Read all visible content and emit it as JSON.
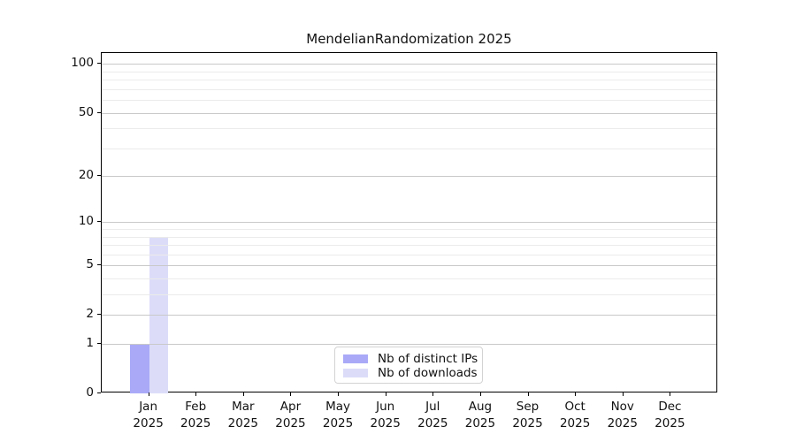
{
  "chart_data": {
    "type": "bar",
    "title": "MendelianRandomization 2025",
    "categories": [
      "Jan",
      "Feb",
      "Mar",
      "Apr",
      "May",
      "Jun",
      "Jul",
      "Aug",
      "Sep",
      "Oct",
      "Nov",
      "Dec"
    ],
    "year_label": "2025",
    "series": [
      {
        "name": "Nb of distinct IPs",
        "color": "#a9a9f8",
        "values": [
          1,
          0,
          0,
          0,
          0,
          0,
          0,
          0,
          0,
          0,
          0,
          0
        ]
      },
      {
        "name": "Nb of downloads",
        "color": "#dcdcf9",
        "values": [
          8,
          0,
          0,
          0,
          0,
          0,
          0,
          0,
          0,
          0,
          0,
          0
        ]
      }
    ],
    "yscale": "log1p",
    "ylim": [
      0,
      116.8
    ],
    "yticks": [
      0,
      1,
      2,
      5,
      10,
      20,
      50,
      100
    ],
    "yticks_minor": [
      3,
      4,
      6,
      7,
      8,
      9,
      30,
      40,
      60,
      70,
      80,
      90
    ],
    "grid": "horizontal",
    "legend_position": "bottom-center",
    "xlabel": "",
    "ylabel": ""
  },
  "colors": {
    "major_grid": "#c9c9c9",
    "minor_grid": "#ebebeb",
    "spine": "#000000",
    "background": "#ffffff",
    "legend_border": "#d3d3d3"
  }
}
